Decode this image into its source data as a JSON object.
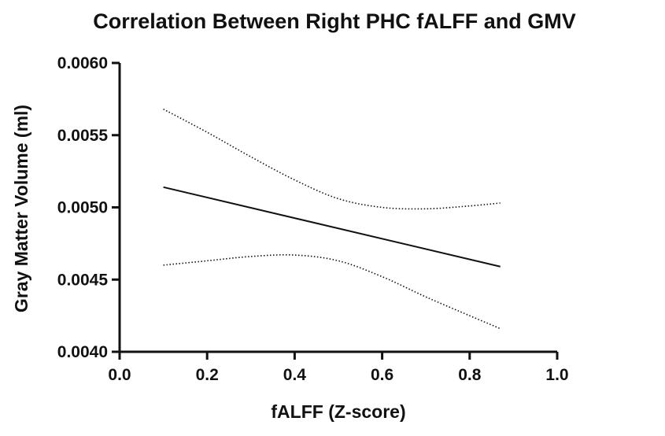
{
  "chart_data": {
    "type": "line",
    "title": "Correlation Between Right PHC fALFF and GMV",
    "xlabel": "fALFF (Z-score)",
    "ylabel": "Gray Matter Volume (ml)",
    "xlim": [
      0.0,
      1.0
    ],
    "ylim": [
      0.004,
      0.006
    ],
    "xticks": [
      "0.0",
      "0.2",
      "0.4",
      "0.6",
      "0.8",
      "1.0"
    ],
    "yticks": [
      "0.0040",
      "0.0045",
      "0.0050",
      "0.0055",
      "0.0060"
    ],
    "grid": false,
    "series": [
      {
        "role": "regression-line",
        "style": "solid",
        "x": [
          0.1,
          0.87
        ],
        "y": [
          0.00514,
          0.00459
        ]
      },
      {
        "role": "upper-confidence-band",
        "style": "dotted",
        "x": [
          0.1,
          0.2,
          0.3,
          0.4,
          0.5,
          0.6,
          0.7,
          0.8,
          0.87
        ],
        "y": [
          0.00568,
          0.00552,
          0.00535,
          0.00519,
          0.00506,
          0.005,
          0.00499,
          0.00501,
          0.00503
        ]
      },
      {
        "role": "lower-confidence-band",
        "style": "dotted",
        "x": [
          0.1,
          0.2,
          0.3,
          0.4,
          0.5,
          0.6,
          0.7,
          0.8,
          0.87
        ],
        "y": [
          0.0046,
          0.00463,
          0.00466,
          0.00467,
          0.00463,
          0.00452,
          0.00438,
          0.00425,
          0.00416
        ]
      }
    ]
  }
}
